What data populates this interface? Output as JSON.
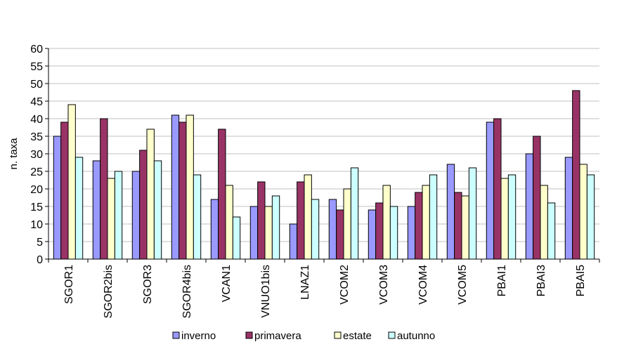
{
  "chart_data": {
    "type": "bar",
    "title": "",
    "xlabel": "",
    "ylabel": "n. taxa",
    "ylim": [
      0,
      60
    ],
    "yticks": [
      0,
      5,
      10,
      15,
      20,
      25,
      30,
      35,
      40,
      45,
      50,
      55,
      60
    ],
    "grid": true,
    "legend_position": "bottom",
    "categories": [
      "SGOR1",
      "SGOR2bis",
      "SGOR3",
      "SGOR4bis",
      "VCAN1",
      "VNUO1bis",
      "LNAZ1",
      "VCOM2",
      "VCOM3",
      "VCOM4",
      "VCOM5",
      "PBAI1",
      "PBAI3",
      "PBAI5"
    ],
    "series": [
      {
        "name": "inverno",
        "color": "#9999ff",
        "values": [
          35,
          28,
          25,
          41,
          17,
          15,
          10,
          17,
          14,
          15,
          27,
          39,
          30,
          29
        ]
      },
      {
        "name": "primavera",
        "color": "#993366",
        "values": [
          39,
          40,
          31,
          39,
          37,
          22,
          22,
          14,
          16,
          19,
          19,
          40,
          35,
          48
        ]
      },
      {
        "name": "estate",
        "color": "#ffffcc",
        "values": [
          44,
          23,
          37,
          41,
          21,
          15,
          24,
          20,
          21,
          21,
          18,
          23,
          21,
          27
        ]
      },
      {
        "name": "autunno",
        "color": "#ccffff",
        "values": [
          29,
          25,
          28,
          24,
          12,
          18,
          17,
          26,
          15,
          24,
          26,
          24,
          16,
          24
        ]
      }
    ]
  }
}
